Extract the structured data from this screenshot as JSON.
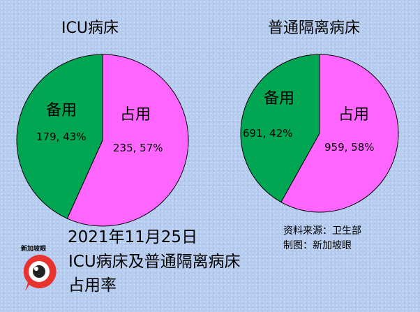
{
  "chart_data": [
    {
      "type": "pie",
      "title": "ICU病床",
      "slices": [
        {
          "category": "占用",
          "value_label": "235, 57%",
          "value": 235,
          "percent": 57,
          "color": "#ff66ff"
        },
        {
          "category": "备用",
          "value_label": "179, 43%",
          "value": 179,
          "percent": 43,
          "color": "#00a651"
        }
      ]
    },
    {
      "type": "pie",
      "title": "普通隔离病床",
      "slices": [
        {
          "category": "占用",
          "value_label": "959, 58%",
          "value": 959,
          "percent": 58,
          "color": "#ff66ff"
        },
        {
          "category": "备用",
          "value_label": "691, 42%",
          "value": 691,
          "percent": 42,
          "color": "#00a651"
        }
      ]
    }
  ],
  "headline": {
    "date": "2021年11月25日",
    "line1": "ICU病床及普通隔离病床",
    "line2": "占用率"
  },
  "source": {
    "line1": "资料来源：卫生部",
    "line2": "制图：新加坡眼"
  },
  "logo": {
    "text": "新加坡眼",
    "icon": "eye-speech-bubble-icon",
    "color": "#e8322d"
  }
}
